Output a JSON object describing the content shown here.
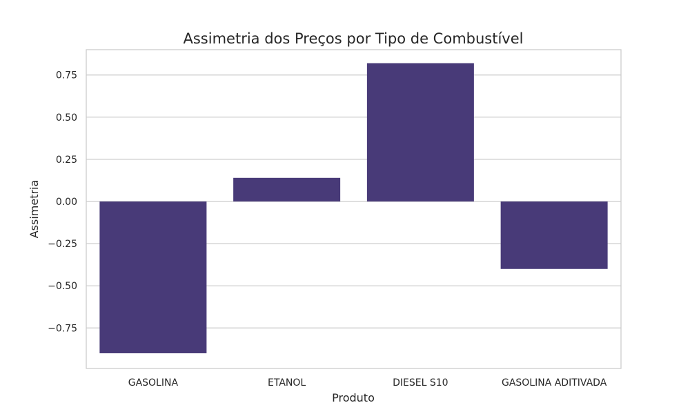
{
  "chart_data": {
    "type": "bar",
    "title": "Assimetria dos Preços por Tipo de Combustível",
    "xlabel": "Produto",
    "ylabel": "Assimetria",
    "categories": [
      "GASOLINA",
      "ETANOL",
      "DIESEL S10",
      "GASOLINA ADITIVADA"
    ],
    "values": [
      -0.9,
      0.14,
      0.82,
      -0.4
    ],
    "ylim": [
      -0.99,
      0.9
    ],
    "yticks": [
      -0.75,
      -0.5,
      -0.25,
      0.0,
      0.25,
      0.5,
      0.75
    ],
    "ytick_labels": [
      "−0.75",
      "−0.50",
      "−0.25",
      "0.00",
      "0.25",
      "0.50",
      "0.75"
    ],
    "grid": "horizontal",
    "colors": {
      "bar": "#483a78",
      "grid": "#cccccc",
      "frame": "#cccccc",
      "text": "#262626",
      "background": "#ffffff"
    }
  }
}
